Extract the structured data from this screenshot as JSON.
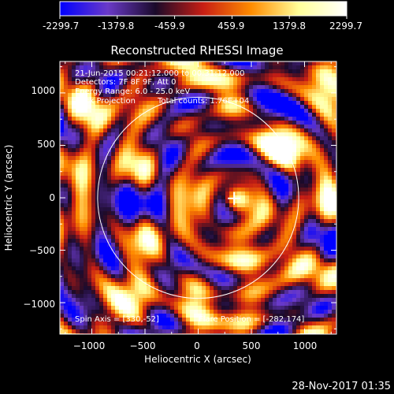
{
  "colorbar": {
    "colors": [
      "#0000ff",
      "#6a3ac8",
      "#1a0a2a",
      "#c81e14",
      "#ff8c00",
      "#ffff9a",
      "#ffffff"
    ],
    "ticks": [
      "-2299.7",
      "-1379.8",
      "-459.9",
      "459.9",
      "1379.8",
      "2299.7"
    ]
  },
  "chart_data": {
    "type": "heatmap",
    "title": "Reconstructed RHESSI Image",
    "xlabel": "Heliocentric X (arcsec)",
    "ylabel": "Heliocentric Y (arcsec)",
    "xlim": [
      -1300,
      1300
    ],
    "ylim": [
      -1300,
      1300
    ],
    "xticks": [
      -1000,
      -500,
      0,
      500,
      1000
    ],
    "yticks": [
      -1000,
      -500,
      0,
      500,
      1000
    ],
    "xtick_labels": [
      "−1000",
      "−500",
      "0",
      "500",
      "1000"
    ],
    "ytick_labels": [
      "−1000",
      "−500",
      "0",
      "500",
      "1000"
    ],
    "value_range": [
      -2299.7,
      2299.7
    ],
    "solar_limb_radius": 945,
    "flare_position": [
      -282,
      174
    ],
    "peak_marker": [
      338,
      -6
    ],
    "annotations": {
      "time": "21-Jun-2015 00:21:12.000 to 00:31:12.000",
      "detectors": "Detectors: 7F 8F 9F, Att 0",
      "energy": "Energy Range: 6.0 - 25.0 keV",
      "method": "Back Projection",
      "counts": "Total counts: 1.76E+04",
      "spin_axis": "Spin Axis = [330,-52]",
      "flare_pos": "Flare Position = [-282,174]"
    }
  },
  "footer": {
    "timestamp": "28-Nov-2017 01:35"
  }
}
